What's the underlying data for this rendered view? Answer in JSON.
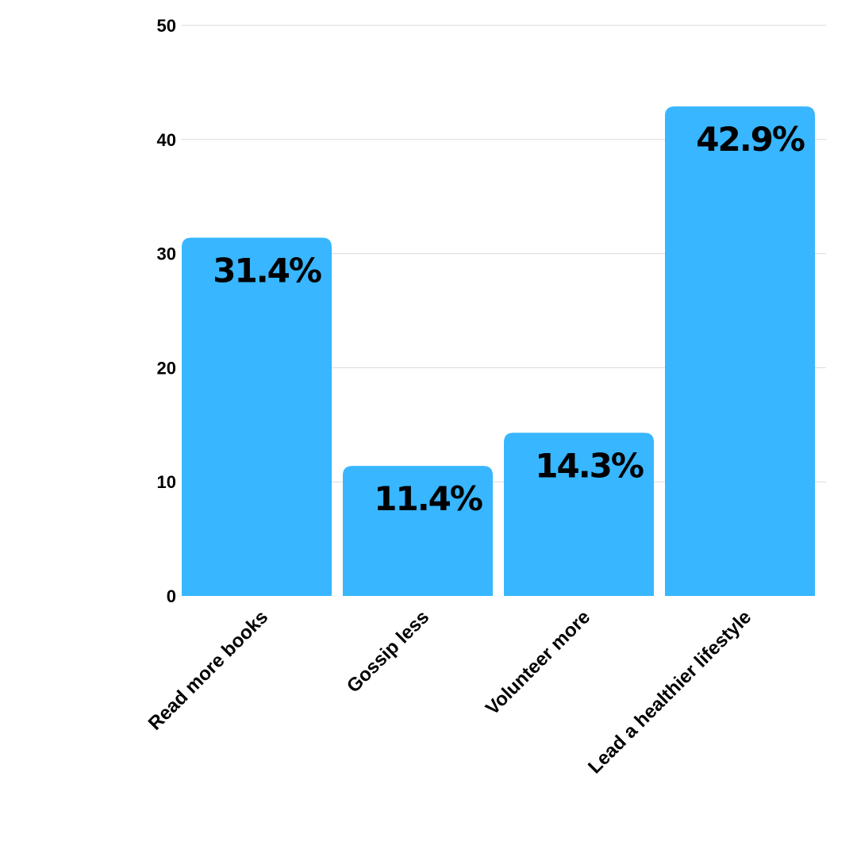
{
  "chart_data": {
    "type": "bar",
    "categories": [
      "Read more books",
      "Gossip less",
      "Volunteer more",
      "Lead a healthier lifestyle"
    ],
    "values": [
      31.4,
      11.4,
      14.3,
      42.9
    ],
    "data_labels": [
      "31.4%",
      "11.4%",
      "14.3%",
      "42.9%"
    ],
    "ylim": [
      0,
      50
    ],
    "yticks": [
      0,
      10,
      20,
      30,
      40,
      50
    ],
    "grid": true,
    "bar_color": "#38b6ff",
    "title": "",
    "xlabel": "",
    "ylabel": ""
  }
}
